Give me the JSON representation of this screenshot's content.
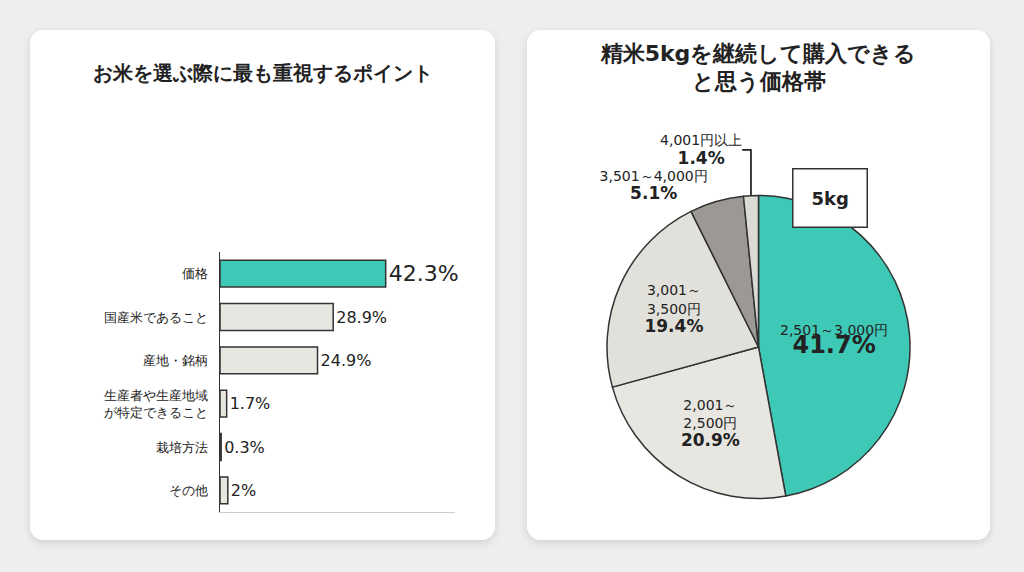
{
  "chart_data": [
    {
      "type": "bar",
      "title": "お米を選ぶ際に最も重視するポイント",
      "orientation": "horizontal",
      "categories": [
        "価格",
        "国産米であること",
        "産地・銘柄",
        "生産者や生産地域\nが特定できること",
        "栽培方法",
        "その他"
      ],
      "values": [
        42.3,
        28.9,
        24.9,
        1.7,
        0.3,
        2
      ],
      "value_labels": [
        "42.3%",
        "28.9%",
        "24.9%",
        "1.7%",
        "0.3%",
        "2%"
      ],
      "colors": [
        "#3ec9b6",
        "#e8e6e1",
        "#e8e6e1",
        "#e8e6e1",
        "#e8e6e1",
        "#e8e6e1"
      ],
      "xlim": [
        0,
        60
      ],
      "data_labels": true,
      "tick_labels": "y",
      "grid": false
    },
    {
      "type": "pie",
      "title": "精米5kgを継続して購入できる\nと思う価格帯",
      "categories": [
        "2,501～3,000円",
        "2,001～\n2,500円",
        "3,001～\n3,500円",
        "3,501～4,000円",
        "4,001円以上"
      ],
      "values": [
        41.7,
        20.9,
        19.4,
        5.1,
        1.4
      ],
      "value_labels": [
        "41.7%",
        "20.9%",
        "19.4%",
        "5.1%",
        "1.4%"
      ],
      "colors": [
        "#3ec9b6",
        "#e8e6e1",
        "#e2e0db",
        "#9c9894",
        "#dcdad5"
      ],
      "data_labels": true,
      "annotations": [
        "5kg"
      ]
    }
  ]
}
